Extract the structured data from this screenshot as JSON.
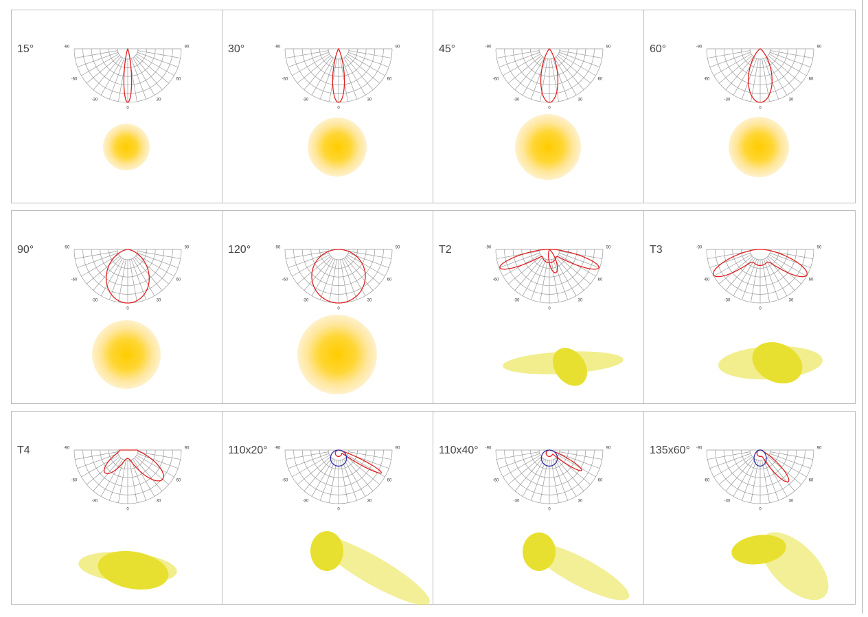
{
  "cells": [
    {
      "label": "15°"
    },
    {
      "label": "30°"
    },
    {
      "label": "45°"
    },
    {
      "label": "60°"
    },
    {
      "label": "90°"
    },
    {
      "label": "120°"
    },
    {
      "label": "T2"
    },
    {
      "label": "T3"
    },
    {
      "label": "T4"
    },
    {
      "label": "110x20°"
    },
    {
      "label": "110x40°"
    },
    {
      "label": "135x60°"
    }
  ],
  "polar_labels": [
    "-90",
    "-60",
    "-30",
    "0",
    "30",
    "60",
    "90"
  ]
}
